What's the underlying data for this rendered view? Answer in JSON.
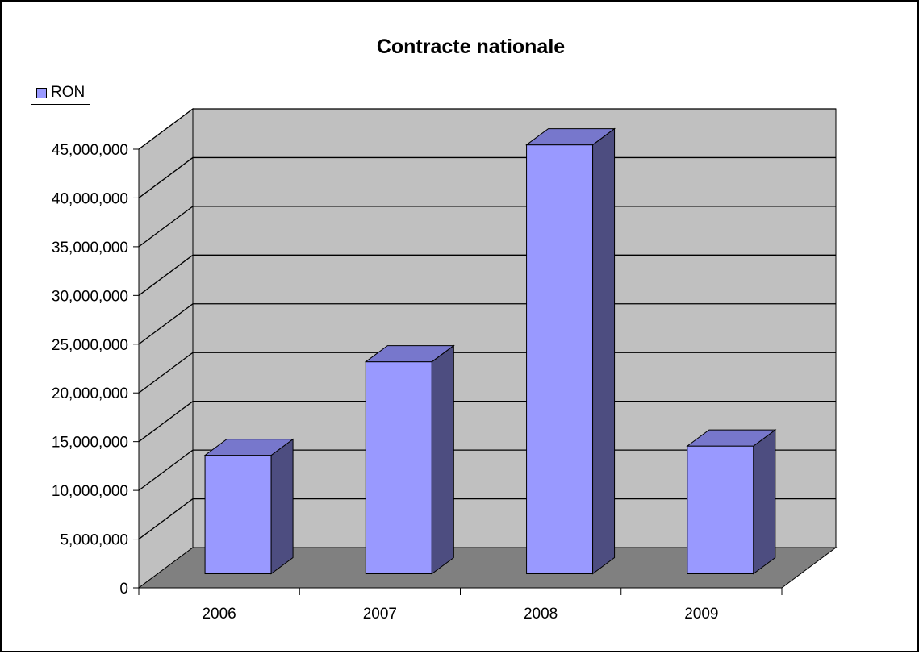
{
  "chart_data": {
    "type": "bar",
    "title": "Contracte nationale",
    "categories": [
      "2006",
      "2007",
      "2008",
      "2009"
    ],
    "series": [
      {
        "name": "RON",
        "values": [
          12150000,
          21750000,
          44000000,
          13100000
        ]
      }
    ],
    "ylim": [
      0,
      45000000
    ],
    "yticks": [
      "0",
      "5,000,000",
      "10,000,000",
      "15,000,000",
      "20,000,000",
      "25,000,000",
      "30,000,000",
      "35,000,000",
      "40,000,000",
      "45,000,000"
    ],
    "grid": true,
    "legend": "top-left",
    "colors": {
      "bar_front": "#9999ff",
      "bar_top": "#7777cc",
      "bar_side": "#4d4d80",
      "back_wall": "#c0c0c0",
      "floor": "#808080"
    }
  }
}
